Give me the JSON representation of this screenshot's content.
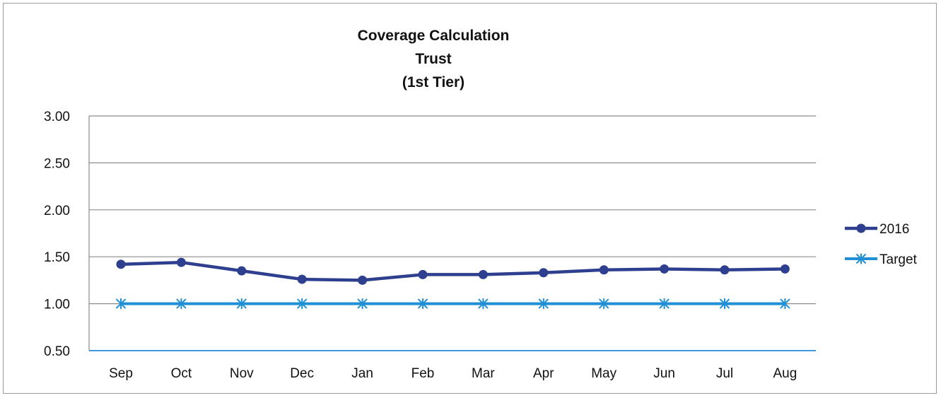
{
  "chart_data": {
    "type": "line",
    "title": [
      "Coverage Calculation",
      "Trust",
      "(1st Tier)"
    ],
    "categories": [
      "Sep",
      "Oct",
      "Nov",
      "Dec",
      "Jan",
      "Feb",
      "Mar",
      "Apr",
      "May",
      "Jun",
      "Jul",
      "Aug"
    ],
    "series": [
      {
        "name": "2016",
        "values": [
          1.42,
          1.44,
          1.35,
          1.26,
          1.25,
          1.31,
          1.31,
          1.33,
          1.36,
          1.37,
          1.36,
          1.37
        ],
        "color": "#2e3f8f",
        "marker": "circle"
      },
      {
        "name": "Target",
        "values": [
          1.0,
          1.0,
          1.0,
          1.0,
          1.0,
          1.0,
          1.0,
          1.0,
          1.0,
          1.0,
          1.0,
          1.0
        ],
        "color": "#1f8fd6",
        "marker": "star"
      }
    ],
    "yticks": [
      "0.50",
      "1.00",
      "1.50",
      "2.00",
      "2.50",
      "3.00"
    ],
    "ylim": [
      0.5,
      3.0
    ],
    "grid": true,
    "legend": "right"
  }
}
